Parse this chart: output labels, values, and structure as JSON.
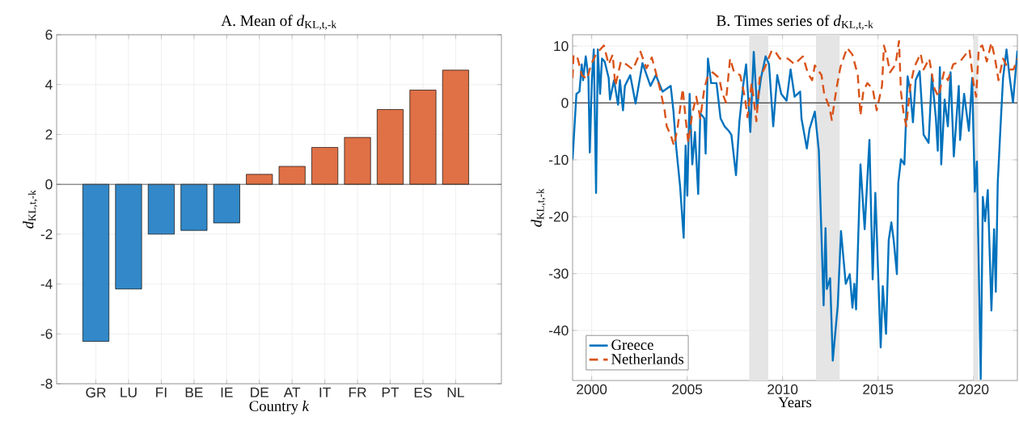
{
  "chart_data": [
    {
      "type": "bar",
      "title": "A. Mean of *d*$_{KL,t,-k}$",
      "xlabel": "Country *k*",
      "ylabel": "*d*$_{KL,t,-k}$",
      "categories": [
        "GR",
        "LU",
        "FI",
        "BE",
        "IE",
        "DE",
        "AT",
        "IT",
        "FR",
        "PT",
        "ES",
        "NL"
      ],
      "values": [
        -6.3,
        -4.2,
        -2.0,
        -1.85,
        -1.55,
        0.4,
        0.72,
        1.48,
        1.88,
        3.0,
        3.78,
        4.58
      ],
      "colors": [
        "#3288c8",
        "#3288c8",
        "#3288c8",
        "#3288c8",
        "#3288c8",
        "#e07045",
        "#e07045",
        "#e07045",
        "#e07045",
        "#e07045",
        "#e07045",
        "#e07045"
      ],
      "ylim": [
        -8,
        6
      ],
      "yticks": [
        -8,
        -6,
        -4,
        -2,
        0,
        2,
        4,
        6
      ],
      "grid": true,
      "ref_lines": [
        {
          "axis": "y",
          "value": 0,
          "color": "#404040"
        }
      ]
    },
    {
      "type": "line",
      "title": "B. Times series of *d*$_{KL,t,-k}$",
      "xlabel": "Years",
      "ylabel": "*d*$_{KL,t,-k}$",
      "xlim": [
        1999,
        2022.3
      ],
      "xticks": [
        2000,
        2005,
        2010,
        2015,
        2020
      ],
      "ylim": [
        -48.8,
        12
      ],
      "yticks": [
        -40,
        -30,
        -20,
        -10,
        0,
        10
      ],
      "grid": true,
      "legend": "bottom left",
      "bands": [
        {
          "axis": "x",
          "from": 2008.25,
          "to": 2009.25,
          "color": "#e5e5e5"
        },
        {
          "axis": "x",
          "from": 2011.75,
          "to": 2013.0,
          "color": "#e5e5e5"
        },
        {
          "axis": "x",
          "from": 2020.0,
          "to": 2020.25,
          "color": "#e5e5e5"
        }
      ],
      "ref_lines": [
        {
          "axis": "y",
          "value": 0,
          "color": "#404040"
        }
      ],
      "series": [
        {
          "name": "Greece",
          "color": "#0072bd",
          "line_style": "solid",
          "x": [
            1999.0,
            1999.2,
            1999.36,
            1999.48,
            1999.55,
            1999.69,
            1999.83,
            1999.9,
            2000.01,
            2000.11,
            2000.23,
            2000.32,
            2000.44,
            2000.54,
            2000.68,
            2000.89,
            2000.96,
            2001.17,
            2001.38,
            2001.48,
            2001.64,
            2001.74,
            2002.02,
            2002.3,
            2002.66,
            2003.08,
            2003.36,
            2003.71,
            2004.14,
            2004.28,
            2004.42,
            2004.63,
            2004.82,
            2004.92,
            2005.01,
            2005.13,
            2005.27,
            2005.41,
            2005.58,
            2005.69,
            2005.9,
            2005.97,
            2006.09,
            2006.26,
            2006.54,
            2006.75,
            2006.96,
            2007.18,
            2007.32,
            2007.56,
            2007.74,
            2007.95,
            2008.09,
            2008.31,
            2008.49,
            2008.66,
            2008.87,
            2009.11,
            2009.29,
            2009.51,
            2009.72,
            2009.93,
            2010.21,
            2010.42,
            2010.63,
            2010.92,
            2010.99,
            2011.27,
            2011.41,
            2011.69,
            2011.9,
            2012.15,
            2012.25,
            2012.32,
            2012.49,
            2012.63,
            2012.89,
            2013.06,
            2013.31,
            2013.52,
            2013.66,
            2013.76,
            2013.85,
            2014.08,
            2014.3,
            2014.55,
            2014.72,
            2014.86,
            2015.14,
            2015.25,
            2015.42,
            2015.56,
            2015.7,
            2015.82,
            2015.99,
            2016.06,
            2016.2,
            2016.38,
            2016.55,
            2016.69,
            2016.83,
            2016.97,
            2017.18,
            2017.39,
            2017.65,
            2017.82,
            2018.03,
            2018.13,
            2018.24,
            2018.31,
            2018.49,
            2018.66,
            2018.8,
            2018.97,
            2019.23,
            2019.3,
            2019.51,
            2019.76,
            2019.93,
            2020.07,
            2020.18,
            2020.38,
            2020.49,
            2020.61,
            2020.75,
            2020.94,
            2021.08,
            2021.17,
            2021.27,
            2021.41,
            2021.55,
            2021.73,
            2021.9,
            2022.07,
            2022.3
          ],
          "values": [
            -9.9,
            1.6,
            2,
            6.8,
            4,
            8.2,
            4.4,
            -8.7,
            4,
            9.4,
            -15.8,
            9.4,
            1.6,
            7.8,
            7.3,
            4.4,
            0.6,
            4,
            -0.3,
            4,
            -1.3,
            3,
            4.9,
            -0.1,
            7,
            3,
            4.9,
            2,
            3,
            -1.3,
            -7.5,
            -14.6,
            -23.7,
            -7.5,
            -16.3,
            1.6,
            -10.8,
            -5.1,
            -16,
            -1.8,
            -2.7,
            -8.9,
            7.8,
            3.5,
            3.5,
            -2.7,
            -4.1,
            -4.9,
            -5.6,
            -12.7,
            -3.2,
            3.5,
            6.8,
            -5.1,
            9,
            -0.8,
            4.4,
            8.2,
            6.8,
            -4.1,
            4.9,
            1.6,
            0.4,
            5.9,
            1.1,
            2,
            -2.7,
            -8,
            -4.6,
            -1.5,
            -8.4,
            -35.6,
            -22,
            -32.7,
            -30.8,
            -45.3,
            -35.6,
            -22.5,
            -31.8,
            -30.1,
            -36,
            -31.8,
            -36.3,
            -10.8,
            -22.2,
            -6.5,
            -31,
            -15.8,
            -43,
            -32.2,
            -40.6,
            -24.1,
            -21,
            -24.1,
            -30.1,
            -14.1,
            -9.9,
            -10.8,
            4.7,
            2,
            -3.4,
            4,
            5.6,
            -5.6,
            -7,
            4.9,
            -2.7,
            -8.4,
            6.3,
            -10.8,
            0.6,
            -4.1,
            5.4,
            -9.4,
            3,
            -6.5,
            1.6,
            -4.9,
            4.4,
            -15.6,
            -10.3,
            -48.5,
            -16.5,
            -20.8,
            -15.3,
            -36.5,
            -22.2,
            -33.2,
            -14.1,
            -4.6,
            4.4,
            9.4,
            4.4,
            0.1,
            9.2
          ]
        },
        {
          "name": "Netherlands",
          "color": "#d95319",
          "line_style": "dashed",
          "x": [
            1999.0,
            1999.05,
            1999.27,
            1999.48,
            1999.76,
            1999.97,
            2000.25,
            2000.64,
            2000.89,
            2001.1,
            2001.24,
            2001.53,
            2001.81,
            2002.16,
            2002.56,
            2002.87,
            2003.15,
            2003.4,
            2003.64,
            2003.82,
            2003.93,
            2004.14,
            2004.31,
            2004.49,
            2004.77,
            2004.92,
            2005.06,
            2005.27,
            2005.48,
            2005.69,
            2005.9,
            2006.05,
            2006.33,
            2006.68,
            2006.82,
            2007.03,
            2007.25,
            2007.46,
            2007.78,
            2008.02,
            2008.16,
            2008.38,
            2008.63,
            2008.8,
            2009.08,
            2009.43,
            2009.58,
            2009.86,
            2010.28,
            2010.63,
            2011.06,
            2011.34,
            2011.55,
            2011.69,
            2012.04,
            2012.18,
            2012.46,
            2012.58,
            2012.82,
            2013.03,
            2013.38,
            2013.66,
            2013.94,
            2014.08,
            2014.23,
            2014.44,
            2014.72,
            2014.93,
            2015.21,
            2015.31,
            2015.49,
            2015.63,
            2015.92,
            2016.1,
            2016.2,
            2016.34,
            2016.48,
            2016.69,
            2016.9,
            2017.23,
            2017.39,
            2017.68,
            2017.96,
            2018.17,
            2018.45,
            2018.66,
            2018.94,
            2019.3,
            2019.79,
            2020.0,
            2020.14,
            2020.28,
            2020.46,
            2020.7,
            2020.94,
            2021.13,
            2021.31,
            2021.55,
            2021.83,
            2022.1,
            2022.3
          ],
          "values": [
            4.4,
            8.5,
            7.8,
            4.9,
            4.2,
            6.8,
            8.7,
            10.1,
            6.8,
            8.5,
            3,
            7.3,
            6.8,
            5.9,
            9,
            6.1,
            8,
            4.9,
            1.6,
            -1.3,
            -4.1,
            -5.6,
            -7.5,
            -4.6,
            2.5,
            -2.7,
            -7,
            -1.8,
            1.1,
            -2.7,
            2.5,
            4.4,
            5.4,
            4.4,
            2,
            0.1,
            7.8,
            5.4,
            4.9,
            1.1,
            -2.5,
            3.5,
            -3.2,
            4.4,
            6.3,
            9.2,
            9.2,
            7.8,
            7.8,
            6.8,
            8.2,
            5.1,
            4,
            6.6,
            4.9,
            1.6,
            -0.8,
            -3,
            2.5,
            6.3,
            9.7,
            8.5,
            4.9,
            -2.2,
            2,
            3.5,
            2.5,
            -1.3,
            3,
            10.1,
            7.8,
            5.4,
            6.8,
            10.9,
            2,
            -1.8,
            -4.1,
            3,
            6.3,
            8.7,
            5.9,
            7.8,
            2.5,
            1.1,
            5.4,
            4,
            6.8,
            7.3,
            9.4,
            3.5,
            1.1,
            9.7,
            10.1,
            7.3,
            10.6,
            7.8,
            4,
            7.8,
            5.9,
            5.9,
            7.8
          ]
        }
      ]
    }
  ]
}
